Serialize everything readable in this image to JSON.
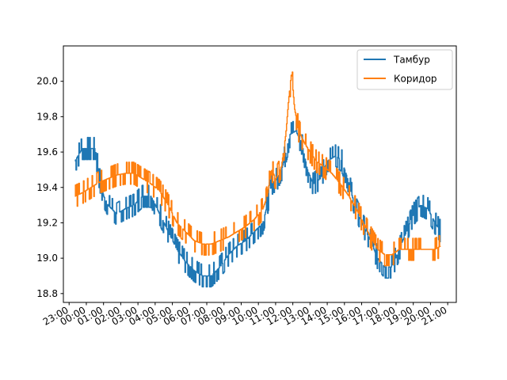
{
  "chart_data": {
    "type": "line",
    "title": "",
    "xlabel": "",
    "ylabel": "",
    "xlim": [
      "22:40",
      "21:30"
    ],
    "ylim": [
      18.75,
      20.2
    ],
    "grid": false,
    "legend_placement": "top-right",
    "x_ticks": [
      "23:00",
      "00:00",
      "01:00",
      "02:00",
      "03:00",
      "04:00",
      "05:00",
      "06:00",
      "07:00",
      "08:00",
      "09:00",
      "10:00",
      "11:00",
      "12:00",
      "13:00",
      "14:00",
      "15:00",
      "16:00",
      "17:00",
      "18:00",
      "19:00",
      "20:00",
      "21:00"
    ],
    "y_ticks": [
      "18.8",
      "19.0",
      "19.2",
      "19.4",
      "19.6",
      "19.8",
      "20.0"
    ],
    "series": [
      {
        "name": "Тамбур",
        "color": "#1f77b4",
        "noise": 0.06,
        "points": [
          [
            "23:20",
            19.55
          ],
          [
            "23:45",
            19.62
          ],
          [
            "00:15",
            19.62
          ],
          [
            "00:30",
            19.62
          ],
          [
            "00:45",
            19.45
          ],
          [
            "01:00",
            19.35
          ],
          [
            "01:15",
            19.3
          ],
          [
            "01:45",
            19.25
          ],
          [
            "02:15",
            19.28
          ],
          [
            "02:45",
            19.3
          ],
          [
            "03:15",
            19.35
          ],
          [
            "03:45",
            19.35
          ],
          [
            "04:15",
            19.25
          ],
          [
            "04:45",
            19.15
          ],
          [
            "05:15",
            19.05
          ],
          [
            "05:45",
            18.98
          ],
          [
            "06:15",
            18.93
          ],
          [
            "06:45",
            18.9
          ],
          [
            "07:15",
            18.9
          ],
          [
            "07:45",
            18.95
          ],
          [
            "08:15",
            19.02
          ],
          [
            "08:45",
            19.07
          ],
          [
            "09:15",
            19.1
          ],
          [
            "09:45",
            19.15
          ],
          [
            "10:15",
            19.2
          ],
          [
            "10:30",
            19.3
          ],
          [
            "10:45",
            19.42
          ],
          [
            "11:05",
            19.45
          ],
          [
            "11:20",
            19.5
          ],
          [
            "11:35",
            19.6
          ],
          [
            "11:50",
            19.7
          ],
          [
            "12:10",
            19.72
          ],
          [
            "12:30",
            19.65
          ],
          [
            "12:50",
            19.5
          ],
          [
            "13:10",
            19.42
          ],
          [
            "13:35",
            19.45
          ],
          [
            "14:00",
            19.55
          ],
          [
            "14:30",
            19.58
          ],
          [
            "14:50",
            19.55
          ],
          [
            "15:10",
            19.45
          ],
          [
            "15:35",
            19.3
          ],
          [
            "16:00",
            19.2
          ],
          [
            "16:30",
            19.1
          ],
          [
            "16:55",
            19.0
          ],
          [
            "17:20",
            18.95
          ],
          [
            "17:45",
            18.95
          ],
          [
            "18:10",
            19.05
          ],
          [
            "18:35",
            19.15
          ],
          [
            "19:00",
            19.25
          ],
          [
            "19:25",
            19.3
          ],
          [
            "19:50",
            19.28
          ],
          [
            "20:15",
            19.2
          ],
          [
            "20:35",
            19.15
          ]
        ]
      },
      {
        "name": "Коридор",
        "color": "#ff7f0e",
        "noise": 0.05,
        "points": [
          [
            "23:20",
            19.35
          ],
          [
            "23:45",
            19.37
          ],
          [
            "00:15",
            19.4
          ],
          [
            "00:45",
            19.43
          ],
          [
            "01:15",
            19.45
          ],
          [
            "01:45",
            19.47
          ],
          [
            "02:15",
            19.48
          ],
          [
            "02:45",
            19.48
          ],
          [
            "03:15",
            19.45
          ],
          [
            "03:45",
            19.42
          ],
          [
            "04:15",
            19.38
          ],
          [
            "04:45",
            19.3
          ],
          [
            "05:15",
            19.2
          ],
          [
            "05:45",
            19.15
          ],
          [
            "06:15",
            19.1
          ],
          [
            "06:45",
            19.08
          ],
          [
            "07:15",
            19.08
          ],
          [
            "07:45",
            19.1
          ],
          [
            "08:15",
            19.12
          ],
          [
            "08:45",
            19.15
          ],
          [
            "09:15",
            19.18
          ],
          [
            "09:45",
            19.22
          ],
          [
            "10:15",
            19.28
          ],
          [
            "10:30",
            19.35
          ],
          [
            "10:45",
            19.5
          ],
          [
            "11:00",
            19.45
          ],
          [
            "11:20",
            19.52
          ],
          [
            "11:35",
            19.7
          ],
          [
            "11:45",
            19.9
          ],
          [
            "11:55",
            20.05
          ],
          [
            "12:05",
            19.85
          ],
          [
            "12:20",
            19.72
          ],
          [
            "12:40",
            19.65
          ],
          [
            "13:00",
            19.6
          ],
          [
            "13:20",
            19.55
          ],
          [
            "13:45",
            19.52
          ],
          [
            "14:15",
            19.48
          ],
          [
            "14:45",
            19.42
          ],
          [
            "15:15",
            19.35
          ],
          [
            "15:40",
            19.28
          ],
          [
            "16:05",
            19.2
          ],
          [
            "16:30",
            19.12
          ],
          [
            "16:55",
            19.05
          ],
          [
            "17:20",
            19.02
          ],
          [
            "17:45",
            19.02
          ],
          [
            "18:10",
            19.05
          ],
          [
            "18:35",
            19.05
          ],
          [
            "19:00",
            19.05
          ],
          [
            "19:25",
            19.05
          ],
          [
            "19:50",
            19.05
          ],
          [
            "20:15",
            19.05
          ],
          [
            "20:35",
            19.07
          ]
        ]
      }
    ]
  }
}
